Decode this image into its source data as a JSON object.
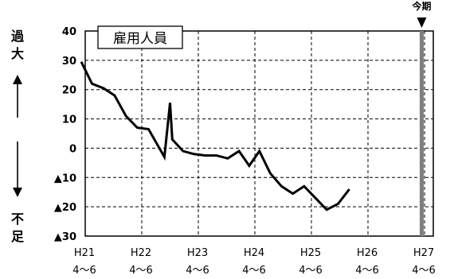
{
  "chart_data": {
    "type": "line",
    "title": "雇用人員",
    "marker_label": "今期",
    "ylabel_top": [
      "過",
      "大"
    ],
    "ylabel_bottom": [
      "不",
      "足"
    ],
    "ylim": [
      -30,
      40
    ],
    "y_ticks": [
      40,
      30,
      20,
      10,
      0,
      -10,
      -20,
      -30
    ],
    "y_tick_labels": [
      "40",
      "30",
      "20",
      "10",
      "0",
      "▲10",
      "▲20",
      "▲30"
    ],
    "x_range": [
      0,
      6.25
    ],
    "x_ticks": [
      {
        "x": 0,
        "line1": "H21",
        "line2": "4～6"
      },
      {
        "x": 1,
        "line1": "H22",
        "line2": "4～6"
      },
      {
        "x": 2,
        "line1": "H23",
        "line2": "4～6"
      },
      {
        "x": 3,
        "line1": "H24",
        "line2": "4～6"
      },
      {
        "x": 4,
        "line1": "H25",
        "line2": "4～6"
      },
      {
        "x": 5,
        "line1": "H26",
        "line2": "4～6"
      },
      {
        "x": 6,
        "line1": "H27",
        "line2": "4～6"
      }
    ],
    "marker_x": 5.95,
    "grid": true,
    "series": [
      {
        "color": "#000000",
        "points": [
          [
            -0.07,
            29.5
          ],
          [
            0.12,
            22
          ],
          [
            0.32,
            20.5
          ],
          [
            0.52,
            18
          ],
          [
            0.72,
            11
          ],
          [
            0.92,
            7
          ],
          [
            1.12,
            6.5
          ],
          [
            1.4,
            -3
          ],
          [
            1.5,
            15.5
          ],
          [
            1.54,
            3
          ],
          [
            1.73,
            -1
          ],
          [
            1.92,
            -2
          ],
          [
            2.12,
            -2.5
          ],
          [
            2.32,
            -2.5
          ],
          [
            2.52,
            -3.5
          ],
          [
            2.72,
            -1
          ],
          [
            2.9,
            -6
          ],
          [
            3.08,
            -1
          ],
          [
            3.27,
            -8.5
          ],
          [
            3.47,
            -13
          ],
          [
            3.67,
            -15.5
          ],
          [
            3.87,
            -13
          ],
          [
            4.07,
            -17
          ],
          [
            4.27,
            -21
          ],
          [
            4.47,
            -19
          ],
          [
            4.67,
            -14
          ]
        ]
      }
    ]
  }
}
